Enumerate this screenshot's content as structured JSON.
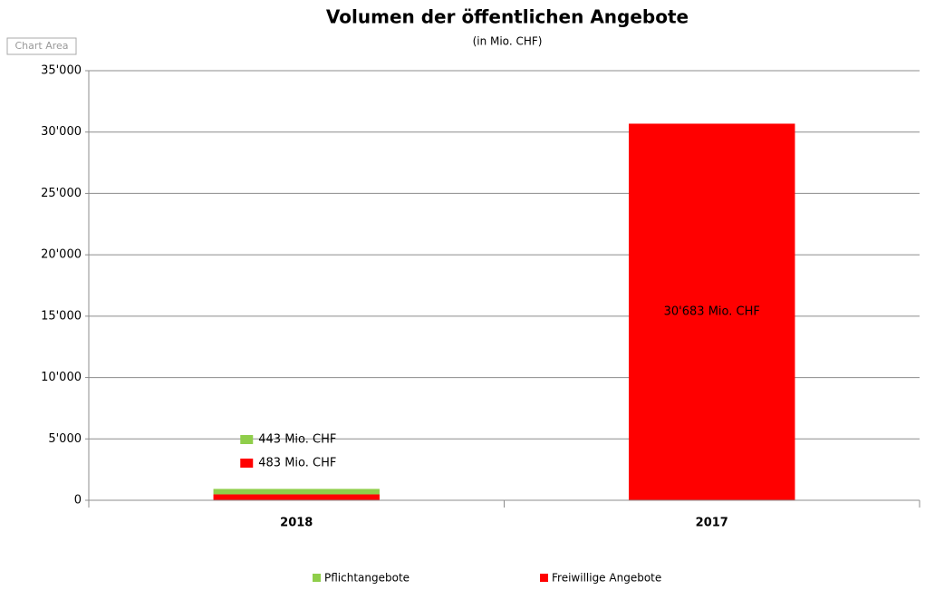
{
  "chart_data": {
    "type": "stacked_bar",
    "title": "Volumen der öffentlichen Angebote",
    "subtitle": "(in Mio.  CHF)",
    "tooltip": "Chart Area",
    "categories": [
      "2018",
      "2017"
    ],
    "series": [
      {
        "name": "Pflichtangebote",
        "color": "#8fce4a",
        "values": [
          443,
          null
        ],
        "value_labels": [
          "443 Mio. CHF",
          null
        ]
      },
      {
        "name": "Freiwillige Angebote",
        "color": "#ff0000",
        "values": [
          483,
          30683
        ],
        "value_labels": [
          "483 Mio. CHF",
          "30'683 Mio. CHF"
        ]
      }
    ],
    "ylim": [
      0,
      35000
    ],
    "yticks": [
      0,
      {
        "value": 5000,
        "label": "5'000"
      },
      {
        "value": 10000,
        "label": "10'000"
      },
      {
        "value": 15000,
        "label": "15'000"
      },
      {
        "value": 20000,
        "label": "20'000"
      },
      {
        "value": 25000,
        "label": "25'000"
      },
      {
        "value": 30000,
        "label": "30'000"
      },
      {
        "value": 35000,
        "label": "35'000"
      }
    ],
    "grid": true,
    "legend": "bottom"
  }
}
